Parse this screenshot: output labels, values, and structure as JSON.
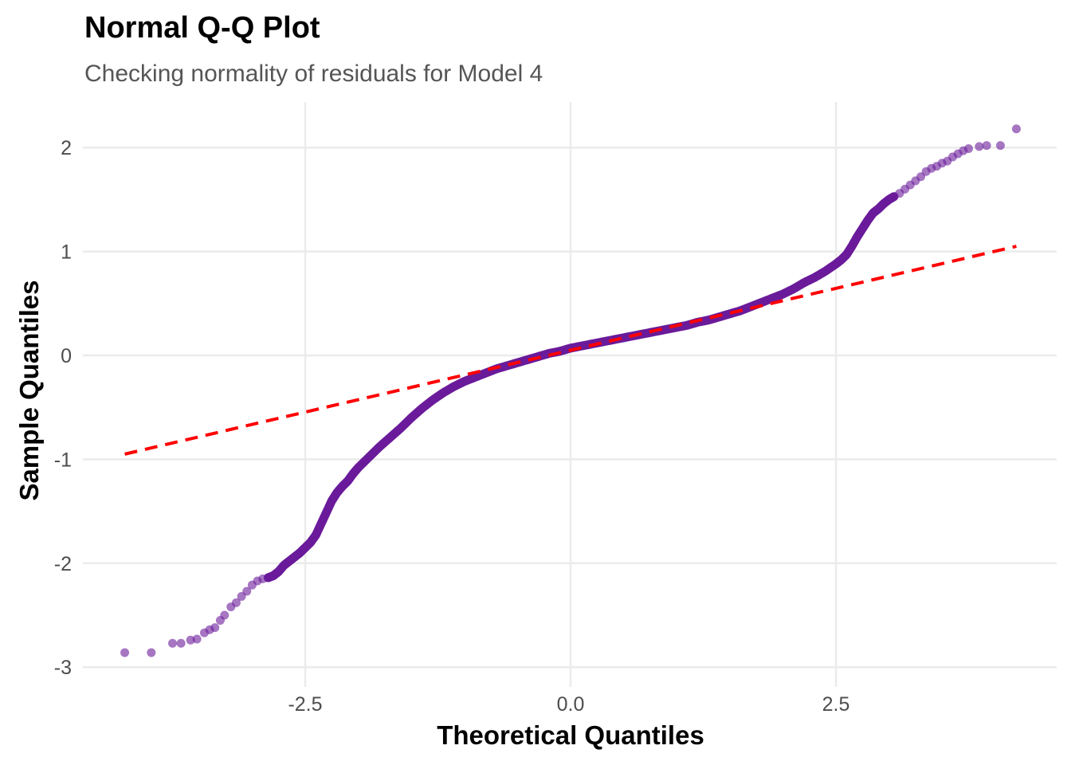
{
  "colors": {
    "background": "#ffffff",
    "grid": "#ebebeb",
    "points": "#6a1b9a",
    "reference_line": "#ff0000"
  },
  "chart_data": {
    "type": "scatter",
    "title": "Normal Q-Q Plot",
    "subtitle": "Checking normality of residuals for Model 4",
    "xlabel": "Theoretical Quantiles",
    "ylabel": "Sample Quantiles",
    "xlim": [
      -4.4,
      4.2
    ],
    "ylim": [
      -3.0,
      2.2
    ],
    "x_ticks": [
      -2.5,
      0.0,
      2.5
    ],
    "x_tick_labels": [
      "-2.5",
      "0.0",
      "2.5"
    ],
    "y_ticks": [
      -3,
      -2,
      -1,
      0,
      1,
      2
    ],
    "y_tick_labels": [
      "-3",
      "-2",
      "-1",
      "0",
      "1",
      "2"
    ],
    "grid": true,
    "legend": "none",
    "reference_line": {
      "style": "dashed",
      "points": [
        [
          -4.2,
          -0.95
        ],
        [
          4.2,
          1.05
        ]
      ]
    },
    "series": [
      {
        "marker": "circle",
        "points": [
          [
            -4.2,
            -2.86
          ],
          [
            -3.95,
            -2.86
          ],
          [
            -3.75,
            -2.77
          ],
          [
            -3.67,
            -2.77
          ],
          [
            -3.58,
            -2.74
          ],
          [
            -3.52,
            -2.73
          ],
          [
            -3.45,
            -2.67
          ],
          [
            -3.4,
            -2.64
          ],
          [
            -3.35,
            -2.62
          ],
          [
            -3.3,
            -2.55
          ],
          [
            -3.26,
            -2.5
          ],
          [
            -3.2,
            -2.42
          ],
          [
            -3.15,
            -2.38
          ],
          [
            -3.1,
            -2.32
          ],
          [
            -3.05,
            -2.27
          ],
          [
            -3.0,
            -2.21
          ],
          [
            -2.95,
            -2.17
          ],
          [
            -2.9,
            -2.15
          ],
          [
            -2.85,
            -2.14
          ],
          [
            -2.8,
            -2.12
          ],
          [
            -2.75,
            -2.08
          ],
          [
            -2.7,
            -2.02
          ],
          [
            -2.65,
            -1.98
          ],
          [
            -2.6,
            -1.94
          ],
          [
            -2.55,
            -1.9
          ],
          [
            -2.5,
            -1.85
          ],
          [
            -2.45,
            -1.8
          ],
          [
            -2.4,
            -1.73
          ],
          [
            -2.35,
            -1.62
          ],
          [
            -2.3,
            -1.51
          ],
          [
            -2.25,
            -1.4
          ],
          [
            -2.2,
            -1.32
          ],
          [
            -2.15,
            -1.26
          ],
          [
            -2.1,
            -1.21
          ],
          [
            -2.05,
            -1.14
          ],
          [
            -2.0,
            -1.08
          ],
          [
            -1.9,
            -0.98
          ],
          [
            -1.8,
            -0.88
          ],
          [
            -1.7,
            -0.79
          ],
          [
            -1.6,
            -0.7
          ],
          [
            -1.5,
            -0.6
          ],
          [
            -1.4,
            -0.51
          ],
          [
            -1.3,
            -0.43
          ],
          [
            -1.2,
            -0.36
          ],
          [
            -1.1,
            -0.3
          ],
          [
            -1.0,
            -0.25
          ],
          [
            -0.9,
            -0.21
          ],
          [
            -0.8,
            -0.17
          ],
          [
            -0.7,
            -0.13
          ],
          [
            -0.6,
            -0.1
          ],
          [
            -0.5,
            -0.07
          ],
          [
            -0.4,
            -0.04
          ],
          [
            -0.3,
            -0.01
          ],
          [
            -0.2,
            0.02
          ],
          [
            -0.1,
            0.04
          ],
          [
            0.0,
            0.07
          ],
          [
            0.1,
            0.09
          ],
          [
            0.2,
            0.11
          ],
          [
            0.3,
            0.13
          ],
          [
            0.4,
            0.15
          ],
          [
            0.5,
            0.17
          ],
          [
            0.6,
            0.19
          ],
          [
            0.7,
            0.21
          ],
          [
            0.8,
            0.23
          ],
          [
            0.9,
            0.25
          ],
          [
            1.0,
            0.27
          ],
          [
            1.1,
            0.29
          ],
          [
            1.2,
            0.32
          ],
          [
            1.3,
            0.34
          ],
          [
            1.4,
            0.37
          ],
          [
            1.5,
            0.4
          ],
          [
            1.6,
            0.43
          ],
          [
            1.7,
            0.47
          ],
          [
            1.8,
            0.51
          ],
          [
            1.9,
            0.55
          ],
          [
            2.0,
            0.59
          ],
          [
            2.1,
            0.64
          ],
          [
            2.2,
            0.7
          ],
          [
            2.3,
            0.75
          ],
          [
            2.4,
            0.81
          ],
          [
            2.5,
            0.88
          ],
          [
            2.55,
            0.92
          ],
          [
            2.6,
            0.97
          ],
          [
            2.65,
            1.05
          ],
          [
            2.7,
            1.14
          ],
          [
            2.75,
            1.22
          ],
          [
            2.8,
            1.3
          ],
          [
            2.85,
            1.37
          ],
          [
            2.9,
            1.41
          ],
          [
            2.95,
            1.46
          ],
          [
            3.0,
            1.5
          ],
          [
            3.05,
            1.53
          ],
          [
            3.1,
            1.56
          ],
          [
            3.15,
            1.6
          ],
          [
            3.2,
            1.64
          ],
          [
            3.25,
            1.68
          ],
          [
            3.3,
            1.72
          ],
          [
            3.35,
            1.77
          ],
          [
            3.4,
            1.8
          ],
          [
            3.45,
            1.82
          ],
          [
            3.5,
            1.85
          ],
          [
            3.55,
            1.87
          ],
          [
            3.6,
            1.91
          ],
          [
            3.65,
            1.94
          ],
          [
            3.7,
            1.97
          ],
          [
            3.75,
            1.99
          ],
          [
            3.85,
            2.01
          ],
          [
            3.92,
            2.02
          ],
          [
            4.05,
            2.02
          ],
          [
            4.2,
            2.18
          ]
        ]
      }
    ]
  }
}
